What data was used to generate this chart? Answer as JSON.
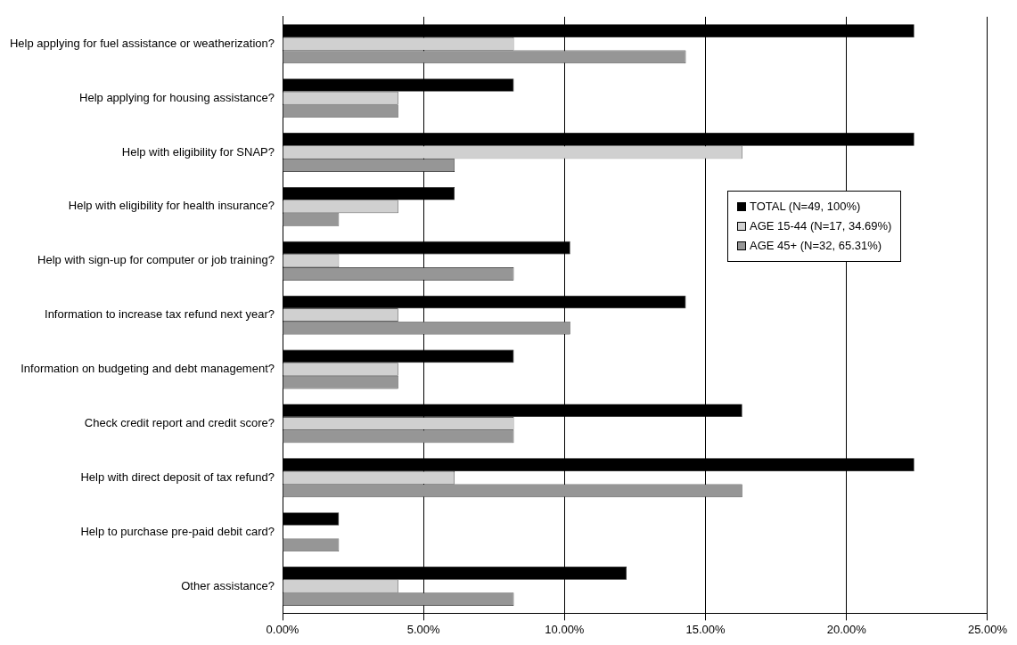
{
  "chart_data": {
    "type": "bar",
    "orientation": "horizontal",
    "categories": [
      "Help applying for fuel assistance or weatherization?",
      "Help applying for housing assistance?",
      "Help with eligibility for SNAP?",
      "Help with eligibility for health insurance?",
      "Help with sign-up for computer or job training?",
      "Information to increase tax refund next year?",
      "Information on budgeting and debt management?",
      "Check credit report and credit score?",
      "Help with direct deposit of tax refund?",
      "Help to purchase pre-paid debit card?",
      "Other assistance?"
    ],
    "series": [
      {
        "name": "TOTAL (N=49, 100%)",
        "color": "#000000",
        "values": [
          22.4,
          8.2,
          22.4,
          6.1,
          10.2,
          14.3,
          8.2,
          16.3,
          22.4,
          2.0,
          12.2
        ]
      },
      {
        "name": "AGE 15-44 (N=17, 34.69%)",
        "color": "#d0d0d0",
        "values": [
          8.2,
          4.1,
          16.3,
          4.1,
          2.0,
          4.1,
          4.1,
          8.2,
          6.1,
          0,
          4.1
        ]
      },
      {
        "name": "AGE 45+ (N=32, 65.31%)",
        "color": "#969696",
        "values": [
          14.3,
          4.1,
          6.1,
          2.0,
          8.2,
          10.2,
          4.1,
          8.2,
          16.3,
          2.0,
          8.2
        ]
      }
    ],
    "xlim": [
      0,
      25
    ],
    "xticks": [
      {
        "value": 0,
        "label": "0.00%"
      },
      {
        "value": 5,
        "label": "5.00%"
      },
      {
        "value": 10,
        "label": "10.00%"
      },
      {
        "value": 15,
        "label": "15.00%"
      },
      {
        "value": 20,
        "label": "20.00%"
      },
      {
        "value": 25,
        "label": "25.00%"
      }
    ],
    "grid": "x",
    "legend": "top right"
  }
}
